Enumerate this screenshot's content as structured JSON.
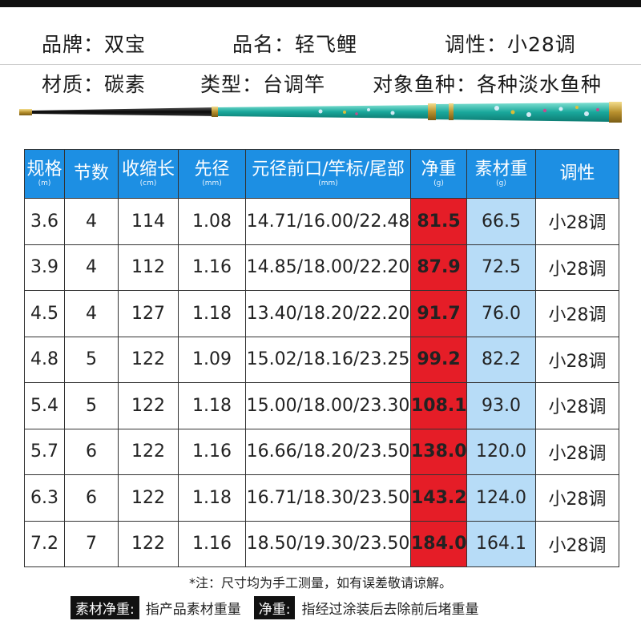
{
  "specs": {
    "brand": "品牌：双宝",
    "name": "品名：轻飞鲤",
    "action": "调性：小28调",
    "material": "材质：碳素",
    "type": "类型：台调竿",
    "target": "对象鱼种：各种淡水鱼种"
  },
  "table": {
    "headers": [
      {
        "label": "规格",
        "unit": "(m)"
      },
      {
        "label": "节数",
        "unit": ""
      },
      {
        "label": "收缩长",
        "unit": "(cm)"
      },
      {
        "label": "先径",
        "unit": "(mm)"
      },
      {
        "label": "元径前口/竿标/尾部",
        "unit": "(mm)"
      },
      {
        "label": "净重",
        "unit": "(g)"
      },
      {
        "label": "素材重",
        "unit": "(g)"
      },
      {
        "label": "调性",
        "unit": ""
      }
    ],
    "rows": [
      [
        "3.6",
        "4",
        "114",
        "1.08",
        "14.71/16.00/22.48",
        "81.5",
        "66.5",
        "小28调"
      ],
      [
        "3.9",
        "4",
        "112",
        "1.16",
        "14.85/18.00/22.20",
        "87.9",
        "72.5",
        "小28调"
      ],
      [
        "4.5",
        "4",
        "127",
        "1.18",
        "13.40/18.20/22.20",
        "91.7",
        "76.0",
        "小28调"
      ],
      [
        "4.8",
        "5",
        "122",
        "1.09",
        "15.02/18.16/23.25",
        "99.2",
        "82.2",
        "小28调"
      ],
      [
        "5.4",
        "5",
        "122",
        "1.18",
        "15.00/18.00/23.30",
        "108.1",
        "93.0",
        "小28调"
      ],
      [
        "5.7",
        "6",
        "122",
        "1.16",
        "16.66/18.20/23.50",
        "138.0",
        "120.0",
        "小28调"
      ],
      [
        "6.3",
        "6",
        "122",
        "1.18",
        "16.71/18.30/23.50",
        "143.2",
        "124.0",
        "小28调"
      ],
      [
        "7.2",
        "7",
        "122",
        "1.16",
        "18.50/19.30/23.50",
        "184.0",
        "164.1",
        "小28调"
      ]
    ]
  },
  "note": "*注：尺寸均为手工测量，如有误差敬请谅解。",
  "legend": {
    "material_tag": "素材净重:",
    "material_text": "指产品素材重量",
    "net_tag": "净重:",
    "net_text": "指经过涂装后去除前后堵重量"
  },
  "colors": {
    "header_blue": "#1d8fe3",
    "net_red": "#e51d27",
    "material_lightblue": "#b7dcf7",
    "rod_teal": "#1aa89c"
  }
}
